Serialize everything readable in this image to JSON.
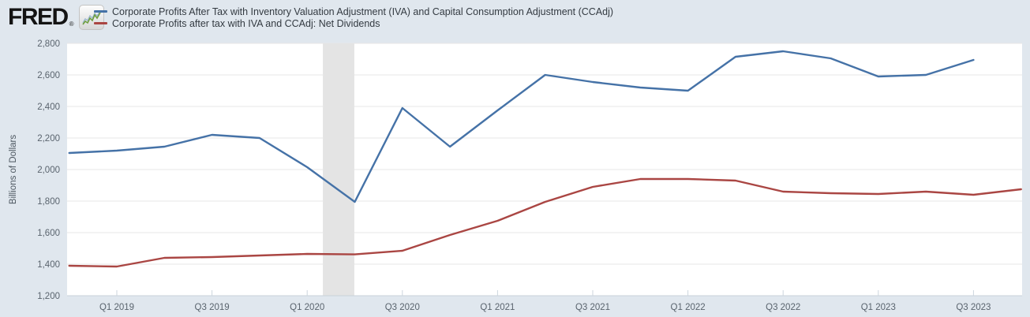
{
  "brand": {
    "logo_text": "FRED",
    "registered_mark": "®"
  },
  "legend": [
    {
      "label": "Corporate Profits After Tax with Inventory Valuation Adjustment (IVA) and Capital Consumption Adjustment (CCAdj)",
      "color": "#4572a7"
    },
    {
      "label": "Corporate Profits after tax with IVA and CCAdj: Net Dividends",
      "color": "#aa4643"
    }
  ],
  "chart_data": {
    "type": "line",
    "title": "",
    "xlabel": "",
    "ylabel": "Billions of Dollars",
    "ylim": [
      1200,
      2800
    ],
    "grid": true,
    "legend_position": "top-left",
    "y_ticks": [
      {
        "value": 1200,
        "label": "1,200"
      },
      {
        "value": 1400,
        "label": "1,400"
      },
      {
        "value": 1600,
        "label": "1,600"
      },
      {
        "value": 1800,
        "label": "1,800"
      },
      {
        "value": 2000,
        "label": "2,000"
      },
      {
        "value": 2200,
        "label": "2,200"
      },
      {
        "value": 2400,
        "label": "2,400"
      },
      {
        "value": 2600,
        "label": "2,600"
      },
      {
        "value": 2800,
        "label": "2,800"
      }
    ],
    "quarters": [
      "Q4 2018",
      "Q1 2019",
      "Q2 2019",
      "Q3 2019",
      "Q4 2019",
      "Q1 2020",
      "Q2 2020",
      "Q3 2020",
      "Q4 2020",
      "Q1 2021",
      "Q2 2021",
      "Q3 2021",
      "Q4 2021",
      "Q1 2022",
      "Q2 2022",
      "Q3 2022",
      "Q4 2022",
      "Q1 2023",
      "Q2 2023",
      "Q3 2023",
      "Q4 2023"
    ],
    "x_ticks": [
      {
        "quarter_index": 1,
        "label": "Q1 2019"
      },
      {
        "quarter_index": 3,
        "label": "Q3 2019"
      },
      {
        "quarter_index": 5,
        "label": "Q1 2020"
      },
      {
        "quarter_index": 7,
        "label": "Q3 2020"
      },
      {
        "quarter_index": 9,
        "label": "Q1 2021"
      },
      {
        "quarter_index": 11,
        "label": "Q3 2021"
      },
      {
        "quarter_index": 13,
        "label": "Q1 2022"
      },
      {
        "quarter_index": 15,
        "label": "Q3 2022"
      },
      {
        "quarter_index": 17,
        "label": "Q1 2023"
      },
      {
        "quarter_index": 19,
        "label": "Q3 2023"
      }
    ],
    "recession_band": {
      "start_quarter_index": 5.33,
      "end_quarter_index": 5.99,
      "color": "#e4e4e4"
    },
    "series": [
      {
        "name": "Corporate Profits After Tax with Inventory Valuation Adjustment (IVA) and Capital Consumption Adjustment (CCAdj)",
        "color": "#4572a7",
        "start_quarter": "Q4 2018",
        "values": [
          2105,
          2120,
          2145,
          2220,
          2200,
          2015,
          1795,
          2390,
          2145,
          2375,
          2600,
          2555,
          2520,
          2500,
          2715,
          2750,
          2705,
          2590,
          2600,
          2695
        ]
      },
      {
        "name": "Corporate Profits after tax with IVA and CCAdj: Net Dividends",
        "color": "#aa4643",
        "start_quarter": "Q4 2018",
        "values": [
          1390,
          1385,
          1440,
          1445,
          1455,
          1465,
          1462,
          1485,
          1585,
          1675,
          1795,
          1890,
          1940,
          1940,
          1930,
          1860,
          1850,
          1845,
          1860,
          1840,
          1875
        ]
      }
    ],
    "colors": {
      "background": "#e0e7ee",
      "plot_background": "#ffffff",
      "gridline": "#e7e7e7",
      "axis_line": "#c9d2d9",
      "tick_text": "#5a646e"
    }
  }
}
